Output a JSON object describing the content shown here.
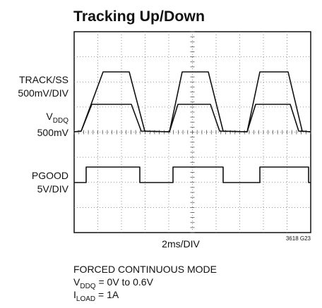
{
  "header": {
    "title": "Tracking Up/Down"
  },
  "labels": {
    "track": {
      "name": "TRACK/SS",
      "scale": "500mV/DIV"
    },
    "vddq": {
      "name": "V",
      "sub": "DDQ",
      "scale": "500mV"
    },
    "pgood": {
      "name": "PGOOD",
      "scale": "5V/DIV"
    }
  },
  "time_scale": "2ms/DIV",
  "figure_id": "3618 G23",
  "notes": {
    "mode": "FORCED CONTINUOUS MODE",
    "vddq": {
      "name": "V",
      "sub": "DDQ",
      "text": " = 0V to 0.6V"
    },
    "load": {
      "name": "I",
      "sub": "LOAD",
      "text": " = 1A"
    }
  }
}
